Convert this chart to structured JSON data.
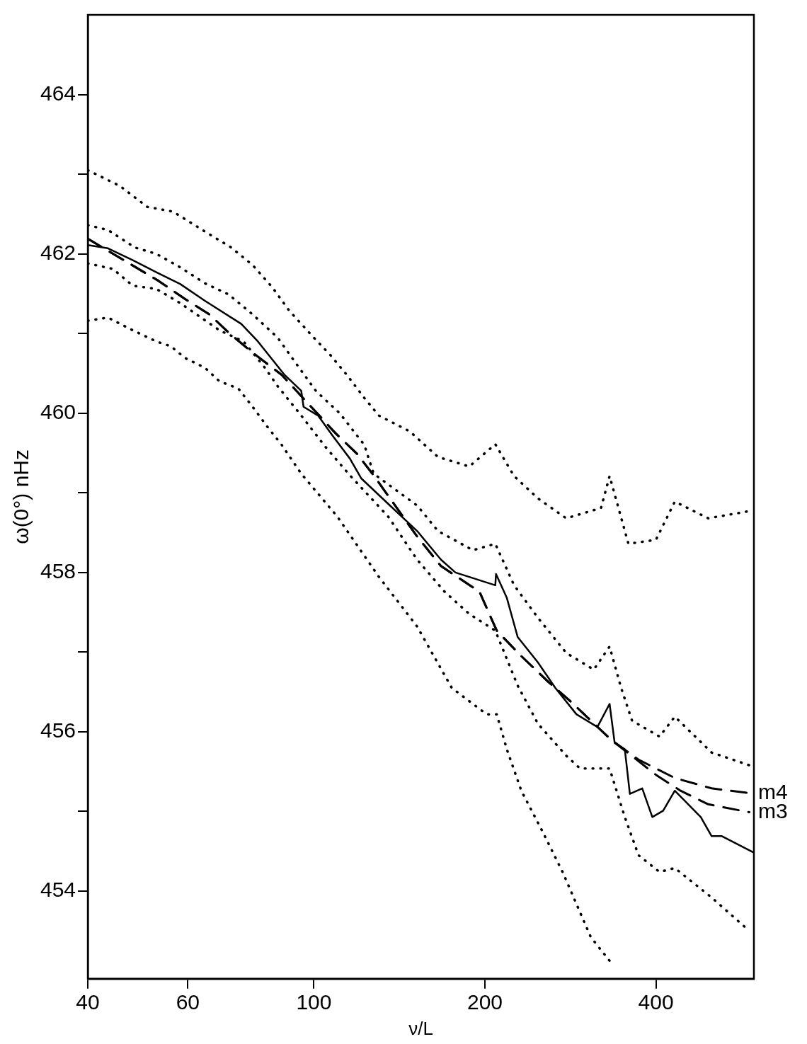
{
  "chart_data": {
    "type": "line",
    "xlabel": "ν/L",
    "ylabel": "ω(0°) nHz",
    "log": "x",
    "xlim": [
      40,
      595
    ],
    "xticks": [
      40,
      60,
      100,
      200,
      400
    ],
    "ylim": [
      452.9,
      465.0
    ],
    "yticks": [
      454,
      {
        "value": 455,
        "label": null
      },
      456,
      {
        "value": 457,
        "label": null
      },
      458,
      {
        "value": 459,
        "label": null
      },
      460,
      {
        "value": 461,
        "label": null
      },
      462,
      {
        "value": 463,
        "label": null
      },
      464
    ],
    "grid": false,
    "legend": false,
    "marker": "none",
    "series": [
      {
        "color": "#000000",
        "line_style": "solid",
        "x": [
          40,
          43.4,
          48,
          52.8,
          58.2,
          64.3,
          74.5,
          79.7,
          88.8,
          95,
          95.9,
          101.7,
          107.8,
          115.7,
          121.2,
          135.2,
          152,
          167.4,
          177.5,
          208.6,
          209.2,
          218.6,
          228.4,
          248,
          266.1,
          289.8,
          315.5,
          331.5,
          338.4,
          352.6,
          359.9,
          378.4,
          394.2,
          411.9,
          431.8,
          479.7,
          501.3,
          522.5,
          592.4
        ],
        "values": [
          462.11,
          462.07,
          461.92,
          461.77,
          461.62,
          461.41,
          461.12,
          460.9,
          460.48,
          460.28,
          460.08,
          459.97,
          459.72,
          459.43,
          459.18,
          458.86,
          458.52,
          458.16,
          458.0,
          457.84,
          457.98,
          457.68,
          457.19,
          456.87,
          456.55,
          456.22,
          456.06,
          456.35,
          455.86,
          455.78,
          455.22,
          455.29,
          454.93,
          455.01,
          455.26,
          454.93,
          454.69,
          454.69,
          454.49
        ]
      },
      {
        "name": "m4",
        "color": "#000000",
        "line_style": "dashed",
        "x": [
          40,
          53.3,
          59.4,
          65.5,
          70.8,
          78,
          87.8,
          109.1,
          119.1,
          127.4,
          152,
          167.4,
          195.6,
          209.8,
          231.8,
          259.2,
          282.2,
          333.5,
          372.8,
          431.8,
          501.3,
          584.1
        ],
        "values": [
          462.19,
          461.66,
          461.43,
          461.24,
          461.01,
          460.76,
          460.48,
          459.75,
          459.49,
          459.22,
          458.45,
          458.08,
          457.76,
          457.27,
          456.95,
          456.62,
          456.39,
          455.9,
          455.65,
          455.42,
          455.29,
          455.23
        ]
      },
      {
        "name": "m3",
        "color": "#000000",
        "line_style": "dashed",
        "x": [
          40,
          53.3,
          59.4,
          65.5,
          70.8,
          78,
          87.8,
          109.1,
          119.1,
          127.4,
          152,
          167.4,
          195.6,
          209.8,
          231.8,
          259.2,
          282.2,
          333.5,
          400,
          442,
          494.4,
          584.1
        ],
        "values": [
          462.19,
          461.66,
          461.43,
          461.24,
          461.01,
          460.76,
          460.48,
          459.75,
          459.49,
          459.22,
          458.45,
          458.08,
          457.76,
          457.27,
          456.95,
          456.62,
          456.39,
          455.9,
          455.46,
          455.26,
          455.09,
          454.99
        ]
      },
      {
        "color": "#000000",
        "line_style": "dotted",
        "x": [
          40,
          45.6,
          50.9,
          56.5,
          64.3,
          71.5,
          78,
          84.5,
          90.4,
          99.9,
          106.9,
          114.3,
          122.7,
          130.1,
          147.6,
          165.4,
          187.7,
          208.6,
          225.1,
          248,
          278.1,
          320.2,
          331.5,
          357.8,
          400,
          431.8,
          494.4,
          584.1
        ],
        "values": [
          463.05,
          462.85,
          462.59,
          462.53,
          462.28,
          462.08,
          461.86,
          461.58,
          461.29,
          460.95,
          460.73,
          460.48,
          460.19,
          459.97,
          459.77,
          459.45,
          459.33,
          459.61,
          459.21,
          458.93,
          458.68,
          458.81,
          459.21,
          458.36,
          458.41,
          458.89,
          458.68,
          458.77
        ]
      },
      {
        "color": "#000000",
        "line_style": "dotted",
        "x": [
          40,
          43.4,
          48.4,
          52.8,
          58.2,
          64.3,
          70.8,
          78,
          86.3,
          93.1,
          100.8,
          111,
          122.7,
          127.4,
          152,
          165.4,
          190.5,
          208.6,
          225.1,
          248,
          278.1,
          310.9,
          331.5,
          347.4,
          363.1,
          405.9,
          431.8,
          501.3,
          584.1
        ],
        "values": [
          462.36,
          462.3,
          462.08,
          462.0,
          461.83,
          461.63,
          461.49,
          461.24,
          460.95,
          460.62,
          460.28,
          460.0,
          459.6,
          459.24,
          458.84,
          458.52,
          458.28,
          458.36,
          457.84,
          457.43,
          456.99,
          456.78,
          457.07,
          456.55,
          456.14,
          455.94,
          456.19,
          455.74,
          455.58
        ]
      },
      {
        "color": "#000000",
        "line_style": "dotted",
        "x": [
          40,
          44.3,
          48,
          52.8,
          58.2,
          63,
          68.2,
          75.2,
          82,
          86.3,
          95,
          104.7,
          115.7,
          135.2,
          152,
          169.8,
          187.7,
          208.6,
          228.4,
          248,
          278.1,
          294,
          331.5,
          352.6,
          372.8,
          405.9,
          431.8,
          501.3,
          584.1
        ],
        "values": [
          461.88,
          461.81,
          461.6,
          461.56,
          461.38,
          461.21,
          461.04,
          460.9,
          460.57,
          460.34,
          459.97,
          459.58,
          459.22,
          458.7,
          458.16,
          457.76,
          457.48,
          457.27,
          456.58,
          456.1,
          455.7,
          455.54,
          455.54,
          454.93,
          454.45,
          454.24,
          454.29,
          453.92,
          453.5
        ]
      },
      {
        "color": "#000000",
        "line_style": "dotted",
        "x": [
          40,
          43.4,
          48,
          52.8,
          56,
          59.4,
          64.3,
          68.2,
          73.6,
          78,
          82.8,
          87.8,
          95,
          110,
          130,
          152,
          174.9,
          201.4,
          209.8,
          218.6,
          231.8,
          251.7,
          274,
          307.3,
          335.4
        ],
        "values": [
          461.16,
          461.2,
          461.04,
          460.9,
          460.84,
          460.69,
          460.57,
          460.4,
          460.31,
          460.08,
          459.83,
          459.6,
          459.24,
          458.7,
          457.95,
          457.32,
          456.55,
          456.22,
          456.22,
          455.78,
          455.26,
          454.77,
          454.24,
          453.42,
          453.08
        ]
      }
    ]
  }
}
